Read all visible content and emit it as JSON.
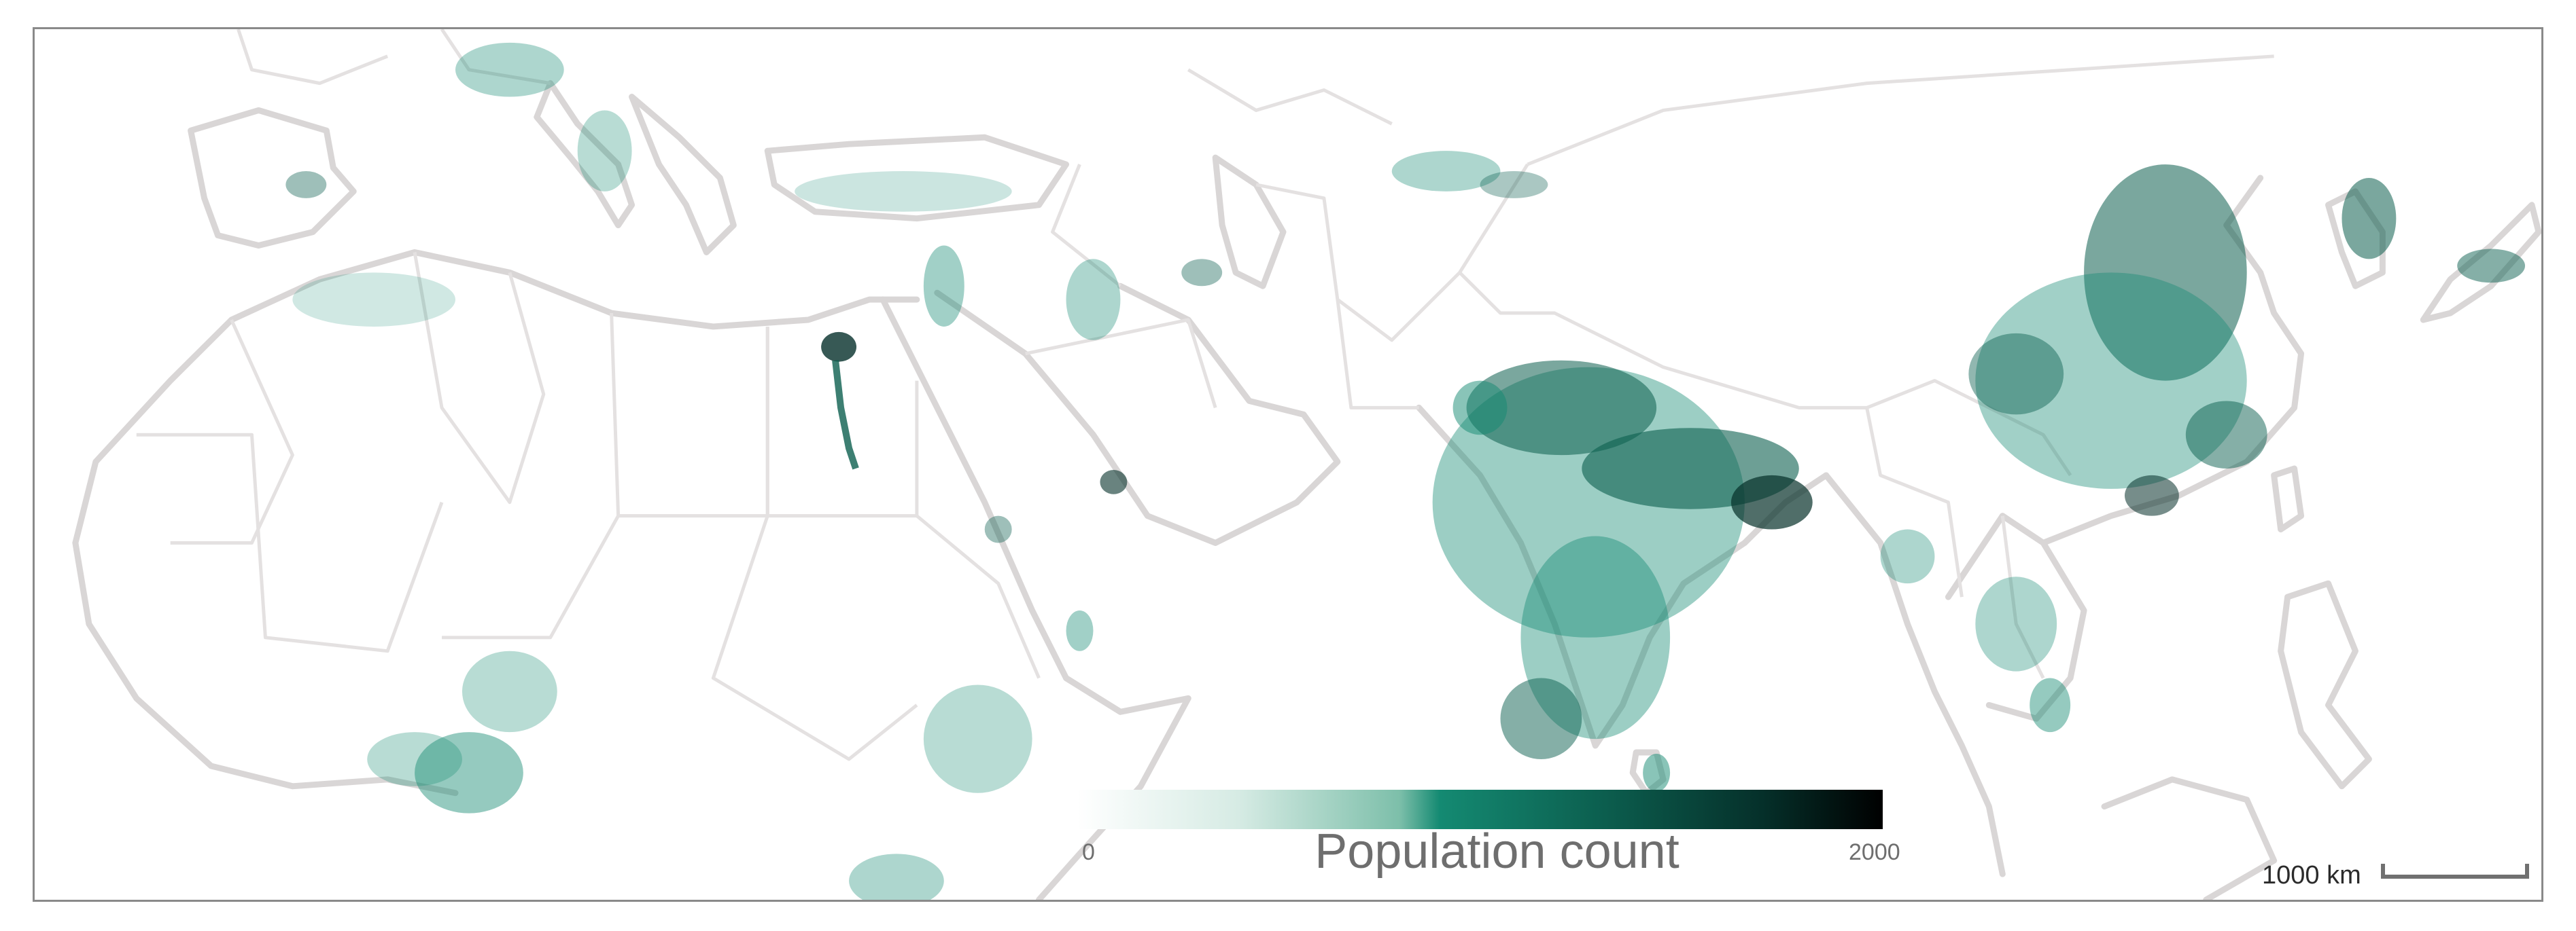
{
  "map": {
    "legend": {
      "title": "Population count",
      "min_label": "0",
      "max_label": "2000",
      "color_ramp": [
        "#ffffff",
        "#d6ebe4",
        "#7dbfaa",
        "#148a72",
        "#0c5f4f",
        "#05302a",
        "#000000"
      ]
    },
    "scale_bar": {
      "label": "1000 km"
    },
    "colors": {
      "land_background": "#ffffff",
      "coastline": "#d9d6d6",
      "borders": "#e4e1e1",
      "frame": "#8a8a8a"
    }
  }
}
